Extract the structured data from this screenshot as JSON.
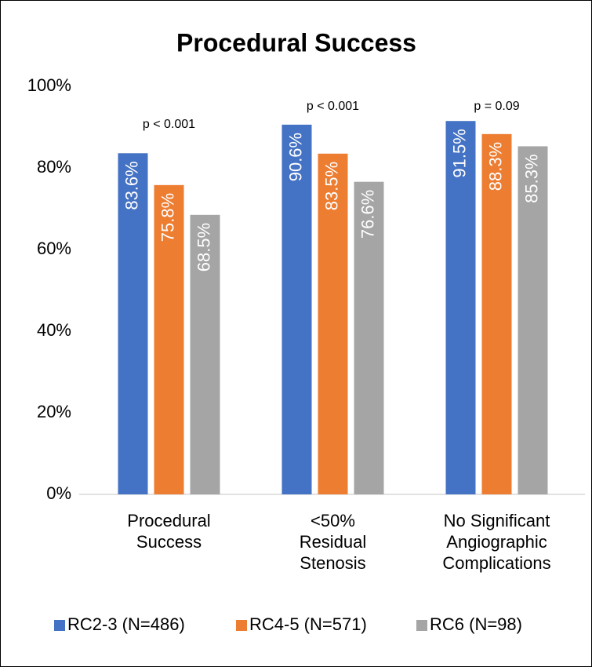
{
  "chart_data": {
    "type": "bar",
    "title": "Procedural Success",
    "categories": [
      "Procedural Success",
      "<50% Residual Stenosis",
      "No Significant Angiographic Complications"
    ],
    "series": [
      {
        "name": "RC2-3 (N=486)",
        "color": "#4472c4",
        "values": [
          83.6,
          90.6,
          91.5
        ],
        "value_labels": [
          "83.6%",
          "90.6%",
          "91.5%"
        ]
      },
      {
        "name": "RC4-5 (N=571)",
        "color": "#ed7d31",
        "values": [
          75.8,
          83.5,
          88.3
        ],
        "value_labels": [
          "75.8%",
          "83.5%",
          "88.3%"
        ]
      },
      {
        "name": "RC6 (N=98)",
        "color": "#a5a5a5",
        "values": [
          68.5,
          76.6,
          85.3
        ],
        "value_labels": [
          "68.5%",
          "76.6%",
          "85.3%"
        ]
      }
    ],
    "annotations": [
      "p < 0.001",
      "p < 0.001",
      "p = 0.09"
    ],
    "ylim": [
      0,
      100
    ],
    "yticks": [
      {
        "value": 0,
        "label": "0%"
      },
      {
        "value": 20,
        "label": "20%"
      },
      {
        "value": 40,
        "label": "40%"
      },
      {
        "value": 60,
        "label": "60%"
      },
      {
        "value": 80,
        "label": "80%"
      },
      {
        "value": 100,
        "label": "100%"
      }
    ],
    "grid": false,
    "legend": "bottom"
  }
}
